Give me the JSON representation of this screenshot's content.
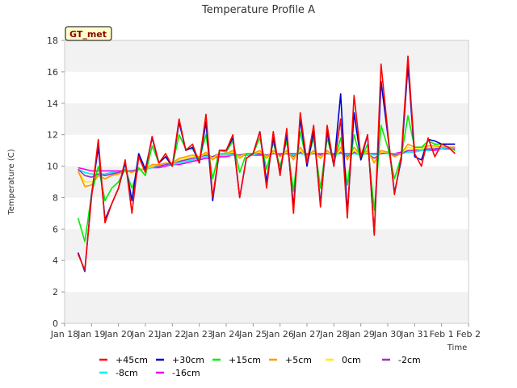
{
  "chart_data": {
    "type": "line",
    "title": "Temperature Profile A",
    "xlabel": "Time",
    "ylabel": "Temperature (C)",
    "ylim": [
      0,
      18
    ],
    "yticks": [
      "0",
      "2",
      "4",
      "6",
      "8",
      "10",
      "12",
      "14",
      "16",
      "18"
    ],
    "xticks": [
      "Jan 18",
      "Jan 19",
      "Jan 20",
      "Jan 21",
      "Jan 22",
      "Jan 23",
      "Jan 24",
      "Jan 25",
      "Jan 26",
      "Jan 27",
      "Jan 28",
      "Jan 29",
      "Jan 30",
      "Jan 31",
      "Feb 1",
      "Feb 2"
    ],
    "grid": "horizontal bands",
    "legend_position": "bottom",
    "badge": "GT_met",
    "x": [
      "Jan 18 12:00",
      "Jan 18 18:00",
      "Jan 19 00:00",
      "Jan 19 06:00",
      "Jan 19 12:00",
      "Jan 19 18:00",
      "Jan 20 00:00",
      "Jan 20 06:00",
      "Jan 20 12:00",
      "Jan 20 18:00",
      "Jan 21 00:00",
      "Jan 21 06:00",
      "Jan 21 12:00",
      "Jan 21 18:00",
      "Jan 22 00:00",
      "Jan 22 06:00",
      "Jan 22 12:00",
      "Jan 22 18:00",
      "Jan 23 00:00",
      "Jan 23 06:00",
      "Jan 23 12:00",
      "Jan 23 18:00",
      "Jan 24 00:00",
      "Jan 24 06:00",
      "Jan 24 12:00",
      "Jan 24 18:00",
      "Jan 25 00:00",
      "Jan 25 06:00",
      "Jan 25 12:00",
      "Jan 25 18:00",
      "Jan 26 00:00",
      "Jan 26 06:00",
      "Jan 26 12:00",
      "Jan 26 18:00",
      "Jan 27 00:00",
      "Jan 27 06:00",
      "Jan 27 12:00",
      "Jan 27 18:00",
      "Jan 28 00:00",
      "Jan 28 06:00",
      "Jan 28 12:00",
      "Jan 28 18:00",
      "Jan 29 00:00",
      "Jan 29 06:00",
      "Jan 29 12:00",
      "Jan 29 18:00",
      "Jan 30 00:00",
      "Jan 30 06:00",
      "Jan 30 12:00",
      "Jan 30 18:00",
      "Jan 31 00:00",
      "Jan 31 06:00",
      "Jan 31 12:00",
      "Jan 31 18:00",
      "Feb 1 00:00",
      "Feb 1 06:00",
      "Feb 1 12:00"
    ],
    "series": [
      {
        "name": "+45cm",
        "color": "#ff0000",
        "values": [
          4.4,
          3.4,
          8.0,
          11.7,
          6.4,
          7.6,
          8.6,
          10.4,
          7.0,
          10.6,
          9.6,
          11.9,
          10.2,
          10.8,
          10.0,
          13.0,
          11.0,
          11.4,
          10.2,
          13.3,
          8.0,
          11.0,
          11.0,
          12.0,
          8.0,
          10.5,
          10.8,
          12.2,
          8.6,
          12.2,
          9.4,
          12.4,
          7.0,
          13.4,
          10.2,
          12.6,
          7.4,
          12.6,
          10.0,
          13.0,
          6.7,
          14.5,
          10.6,
          12.0,
          5.6,
          16.5,
          12.2,
          8.2,
          10.6,
          17.0,
          10.8,
          10.0,
          11.8,
          10.6,
          11.4,
          11.2,
          10.8
        ]
      },
      {
        "name": "+30cm",
        "color": "#0000cc",
        "values": [
          4.5,
          3.3,
          8.2,
          11.2,
          6.6,
          7.6,
          8.6,
          10.2,
          7.8,
          10.8,
          9.8,
          11.8,
          10.2,
          10.6,
          10.0,
          12.8,
          11.0,
          11.2,
          10.2,
          12.8,
          7.8,
          11.0,
          11.0,
          11.8,
          8.0,
          10.5,
          10.8,
          12.2,
          9.0,
          11.8,
          9.6,
          12.0,
          7.4,
          13.0,
          10.0,
          12.2,
          7.6,
          12.2,
          10.0,
          14.6,
          7.0,
          13.4,
          10.4,
          12.0,
          5.7,
          15.4,
          12.0,
          8.3,
          10.4,
          16.4,
          10.6,
          10.4,
          11.7,
          11.6,
          11.4,
          11.4,
          11.4
        ]
      },
      {
        "name": "+15cm",
        "color": "#00ee00",
        "values": [
          6.7,
          5.2,
          8.2,
          10.0,
          7.8,
          8.6,
          9.0,
          9.8,
          8.6,
          9.9,
          9.4,
          11.3,
          10.2,
          10.6,
          10.0,
          12.0,
          11.1,
          11.1,
          10.4,
          12.0,
          9.2,
          11.0,
          10.9,
          11.6,
          9.6,
          10.8,
          10.8,
          11.8,
          9.8,
          11.5,
          10.0,
          11.6,
          8.4,
          12.2,
          10.2,
          11.8,
          8.6,
          11.8,
          10.2,
          11.8,
          8.8,
          12.0,
          10.4,
          11.4,
          7.2,
          12.6,
          11.2,
          9.2,
          10.6,
          13.2,
          11.2,
          11.2,
          11.6,
          11.4,
          11.4,
          11.2,
          11.0
        ]
      },
      {
        "name": "+5cm",
        "color": "#ff9900",
        "values": [
          9.7,
          8.7,
          8.8,
          9.4,
          9.2,
          9.4,
          9.5,
          9.7,
          9.6,
          9.8,
          9.8,
          10.1,
          10.1,
          10.2,
          10.2,
          10.5,
          10.6,
          10.7,
          10.6,
          10.9,
          10.4,
          10.8,
          10.8,
          11.0,
          10.5,
          10.8,
          10.8,
          11.0,
          10.5,
          11.0,
          10.6,
          11.0,
          10.4,
          11.2,
          10.6,
          11.0,
          10.5,
          11.0,
          10.6,
          11.2,
          10.4,
          11.2,
          10.7,
          11.0,
          10.2,
          11.0,
          10.9,
          10.6,
          10.8,
          11.4,
          11.2,
          11.2,
          11.3,
          11.3,
          11.2,
          11.2,
          11.2
        ]
      },
      {
        "name": "0cm",
        "color": "#ffee00",
        "values": [
          9.7,
          9.0,
          9.0,
          9.4,
          9.2,
          9.4,
          9.5,
          9.7,
          9.6,
          9.8,
          9.8,
          10.0,
          10.1,
          10.2,
          10.2,
          10.4,
          10.5,
          10.6,
          10.6,
          10.8,
          10.5,
          10.8,
          10.8,
          10.9,
          10.6,
          10.8,
          10.8,
          10.9,
          10.6,
          10.9,
          10.6,
          10.9,
          10.5,
          11.0,
          10.6,
          10.9,
          10.6,
          10.9,
          10.6,
          11.0,
          10.5,
          11.0,
          10.7,
          10.9,
          10.3,
          10.9,
          10.9,
          10.6,
          10.8,
          11.2,
          11.1,
          11.1,
          11.2,
          11.2,
          11.2,
          11.2,
          11.2
        ]
      },
      {
        "name": "-2cm",
        "color": "#9933cc",
        "values": [
          9.8,
          9.4,
          9.3,
          9.5,
          9.4,
          9.5,
          9.6,
          9.7,
          9.7,
          9.8,
          9.8,
          10.0,
          10.0,
          10.1,
          10.2,
          10.3,
          10.4,
          10.5,
          10.6,
          10.7,
          10.6,
          10.8,
          10.8,
          10.8,
          10.7,
          10.8,
          10.8,
          10.8,
          10.7,
          10.8,
          10.7,
          10.8,
          10.6,
          10.9,
          10.7,
          10.8,
          10.7,
          10.8,
          10.7,
          10.9,
          10.6,
          10.9,
          10.8,
          10.8,
          10.5,
          10.8,
          10.9,
          10.7,
          10.8,
          11.0,
          11.0,
          11.1,
          11.1,
          11.1,
          11.2,
          11.2,
          11.2
        ]
      },
      {
        "name": "-8cm",
        "color": "#00eeee",
        "values": [
          9.8,
          9.6,
          9.5,
          9.5,
          9.5,
          9.6,
          9.6,
          9.7,
          9.7,
          9.8,
          9.8,
          9.9,
          10.0,
          10.1,
          10.1,
          10.2,
          10.3,
          10.4,
          10.5,
          10.6,
          10.6,
          10.7,
          10.7,
          10.7,
          10.7,
          10.7,
          10.7,
          10.8,
          10.7,
          10.8,
          10.7,
          10.8,
          10.7,
          10.8,
          10.7,
          10.8,
          10.7,
          10.8,
          10.7,
          10.8,
          10.7,
          10.8,
          10.7,
          10.8,
          10.7,
          10.8,
          10.8,
          10.8,
          10.8,
          10.9,
          10.9,
          11.0,
          11.0,
          11.1,
          11.1,
          11.2,
          11.2
        ]
      },
      {
        "name": "-16cm",
        "color": "#ee00ee",
        "values": [
          9.9,
          9.8,
          9.7,
          9.7,
          9.7,
          9.7,
          9.7,
          9.7,
          9.7,
          9.8,
          9.8,
          9.9,
          9.9,
          10.0,
          10.1,
          10.1,
          10.2,
          10.3,
          10.4,
          10.5,
          10.5,
          10.6,
          10.6,
          10.7,
          10.7,
          10.7,
          10.7,
          10.7,
          10.7,
          10.8,
          10.8,
          10.8,
          10.8,
          10.8,
          10.8,
          10.8,
          10.8,
          10.8,
          10.8,
          10.8,
          10.8,
          10.8,
          10.8,
          10.8,
          10.8,
          10.8,
          10.8,
          10.8,
          10.9,
          10.9,
          10.9,
          11.0,
          11.0,
          11.0,
          11.1,
          11.1,
          11.1
        ]
      }
    ]
  }
}
